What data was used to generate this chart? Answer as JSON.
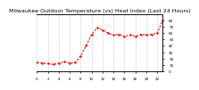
{
  "title": "Milwaukee Outdoor Temperature (vs) Heat Index (Last 24 Hours)",
  "line_color": "#ff0000",
  "bg_color": "#ffffff",
  "grid_color": "#aaaaaa",
  "y_values": [
    14,
    13,
    12,
    11,
    13,
    15,
    13,
    14,
    24,
    40,
    58,
    68,
    65,
    60,
    57,
    58,
    55,
    57,
    55,
    58,
    57,
    58,
    60,
    80
  ],
  "ylim": [
    0,
    90
  ],
  "yticks": [
    0,
    10,
    20,
    30,
    40,
    50,
    60,
    70,
    80
  ],
  "ytick_labels": [
    "0",
    "10",
    "20",
    "30",
    "40",
    "50",
    "60",
    "70",
    "80"
  ],
  "xtick_positions": [
    0,
    2,
    4,
    6,
    8,
    10,
    12,
    14,
    16,
    18,
    20,
    22
  ],
  "xtick_labels": [
    "0",
    "2",
    "4",
    "6",
    "8",
    "10",
    "12",
    "14",
    "16",
    "18",
    "20",
    "22"
  ],
  "title_fontsize": 4.5,
  "tick_fontsize": 3.0,
  "line_width": 0.8,
  "marker": ".",
  "marker_size": 1.5
}
